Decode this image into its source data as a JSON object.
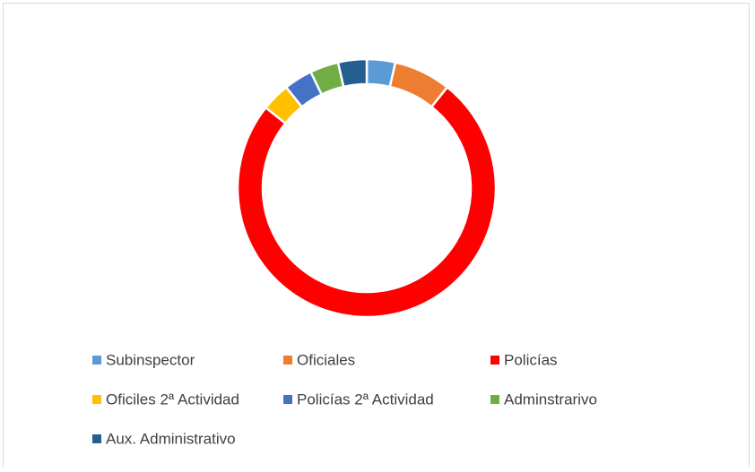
{
  "chart_data": {
    "type": "donut",
    "categories": [
      "Subinspector",
      "Oficiales",
      "Policías",
      "Oficiles 2ª Actividad",
      "Policías 2ª Actividad",
      "Adminstrarivo",
      "Aux. Administrativo"
    ],
    "values": [
      1,
      2,
      21,
      1,
      1,
      1,
      1
    ],
    "colors": [
      "#5b9bd5",
      "#ed7d31",
      "#ff0000",
      "#ffc000",
      "#4472c4",
      "#70ad47",
      "#255e91"
    ],
    "legend": "bottom"
  }
}
